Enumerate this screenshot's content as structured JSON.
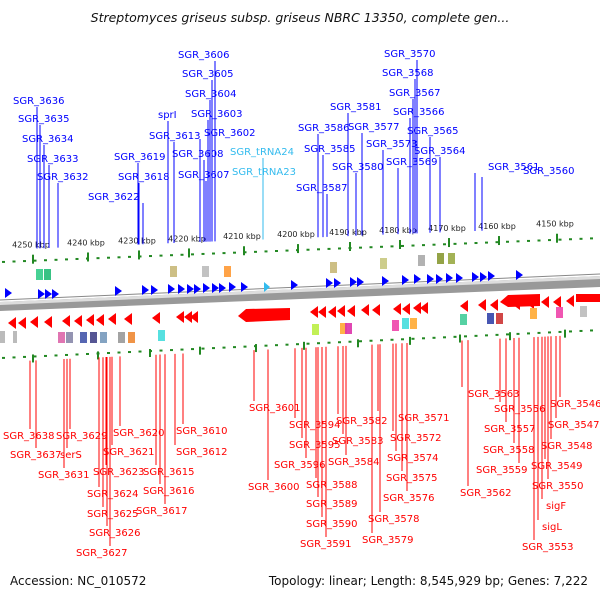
{
  "title": "Streptomyces griseus subsp. griseus NBRC 13350, complete gen...",
  "footer": {
    "accession": "Accession: NC_010572",
    "topology": "Topology: linear; Length: 8,545,929 bp; Genes: 7,222"
  },
  "colors": {
    "forward": "#0000ff",
    "reverse": "#ff0000",
    "trna": "#33bbee",
    "ruler": "#228822",
    "backbone": "#aaaaaa"
  },
  "ruler_labels": [
    "4250 kbp",
    "4240 kbp",
    "4230 kbp",
    "4220 kbp",
    "4210 kbp",
    "4200 kbp",
    "4190 kbp",
    "4180 kbp",
    "4170 kbp",
    "4160 kbp",
    "4150 kbp"
  ],
  "top_genes": [
    {
      "name": "SGR_3636",
      "type": "cds"
    },
    {
      "name": "SGR_3635",
      "type": "cds"
    },
    {
      "name": "SGR_3634",
      "type": "cds"
    },
    {
      "name": "SGR_3633",
      "type": "cds"
    },
    {
      "name": "SGR_3632",
      "type": "cds"
    },
    {
      "name": "SGR_3622",
      "type": "cds"
    },
    {
      "name": "SGR_3619",
      "type": "cds"
    },
    {
      "name": "SGR_3618",
      "type": "cds"
    },
    {
      "name": "SGR_3613",
      "type": "cds"
    },
    {
      "name": "sprI",
      "type": "cds"
    },
    {
      "name": "SGR_3606",
      "type": "cds"
    },
    {
      "name": "SGR_3605",
      "type": "cds"
    },
    {
      "name": "SGR_3604",
      "type": "cds"
    },
    {
      "name": "SGR_3603",
      "type": "cds"
    },
    {
      "name": "SGR_3602",
      "type": "cds"
    },
    {
      "name": "SGR_3608",
      "type": "cds"
    },
    {
      "name": "SGR_3607",
      "type": "cds"
    },
    {
      "name": "SGR_tRNA24",
      "type": "trna"
    },
    {
      "name": "SGR_tRNA23",
      "type": "trna"
    },
    {
      "name": "SGR_3587",
      "type": "cds"
    },
    {
      "name": "SGR_3586",
      "type": "cds"
    },
    {
      "name": "SGR_3585",
      "type": "cds"
    },
    {
      "name": "SGR_3581",
      "type": "cds"
    },
    {
      "name": "SGR_3580",
      "type": "cds"
    },
    {
      "name": "SGR_3577",
      "type": "cds"
    },
    {
      "name": "SGR_3573",
      "type": "cds"
    },
    {
      "name": "SGR_3570",
      "type": "cds"
    },
    {
      "name": "SGR_3568",
      "type": "cds"
    },
    {
      "name": "SGR_3567",
      "type": "cds"
    },
    {
      "name": "SGR_3566",
      "type": "cds"
    },
    {
      "name": "SGR_3565",
      "type": "cds"
    },
    {
      "name": "SGR_3569",
      "type": "cds"
    },
    {
      "name": "SGR_3564",
      "type": "cds"
    },
    {
      "name": "SGR_3561",
      "type": "cds"
    },
    {
      "name": "SGR_3560",
      "type": "cds"
    }
  ],
  "bottom_genes": [
    "SGR_3638",
    "SGR_3637",
    "SGR_3631",
    "serS",
    "SGR_3629",
    "SGR_3624",
    "SGR_3625",
    "SGR_3626",
    "SGR_3627",
    "SGR_3621",
    "SGR_3623",
    "SGR_3620",
    "SGR_3615",
    "SGR_3616",
    "SGR_3617",
    "SGR_3612",
    "SGR_3610",
    "SGR_3601",
    "SGR_3600",
    "SGR_3594",
    "SGR_3595",
    "SGR_3596",
    "SGR_3588",
    "SGR_3589",
    "SGR_3590",
    "SGR_3591",
    "SGR_3582",
    "SGR_3583",
    "SGR_3584",
    "SGR_3571",
    "SGR_3572",
    "SGR_3574",
    "SGR_3575",
    "SGR_3576",
    "SGR_3578",
    "SGR_3579",
    "SGR_3563",
    "SGR_3562",
    "SGR_3556",
    "SGR_3557",
    "SGR_3558",
    "SGR_3559",
    "SGR_3546",
    "SGR_3547",
    "SGR_3548",
    "SGR_3549",
    "SGR_3550",
    "sigF",
    "sigL",
    "SGR_3553"
  ]
}
